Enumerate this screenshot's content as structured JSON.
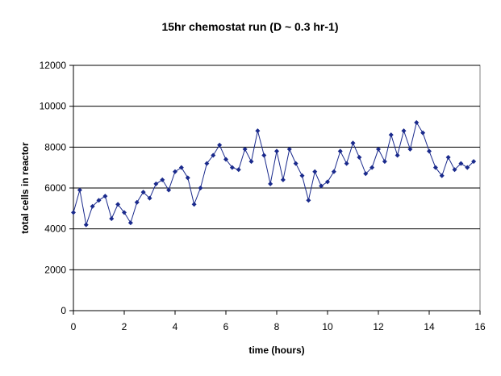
{
  "chart_data": {
    "type": "line",
    "title": "15hr chemostat run (D ~ 0.3 hr-1)",
    "xlabel": "time (hours)",
    "ylabel": "total cells in reactor",
    "xlim": [
      0,
      16
    ],
    "ylim": [
      0,
      12000
    ],
    "x_ticks": [
      "0",
      "2",
      "4",
      "6",
      "8",
      "10",
      "12",
      "14",
      "16"
    ],
    "y_ticks": [
      "0",
      "2000",
      "4000",
      "6000",
      "8000",
      "10000",
      "12000"
    ],
    "grid": "horizontal major lines",
    "legend": "none",
    "marker": "diamond",
    "colors": {
      "series": "#1a2a8c",
      "gridline": "#000000",
      "plot_border": "#808080"
    },
    "series": [
      {
        "x": [
          0.0,
          0.25,
          0.5,
          0.75,
          1.0,
          1.25,
          1.5,
          1.75,
          2.0,
          2.25,
          2.5,
          2.75,
          3.0,
          3.25,
          3.5,
          3.75,
          4.0,
          4.25,
          4.5,
          4.75,
          5.0,
          5.25,
          5.5,
          5.75,
          6.0,
          6.25,
          6.5,
          6.75,
          7.0,
          7.25,
          7.5,
          7.75,
          8.0,
          8.25,
          8.5,
          8.75,
          9.0,
          9.25,
          9.5,
          9.75,
          10.0,
          10.25,
          10.5,
          10.75,
          11.0,
          11.25,
          11.5,
          11.75,
          12.0,
          12.25,
          12.5,
          12.75,
          13.0,
          13.25,
          13.5,
          13.75,
          14.0,
          14.25,
          14.5,
          14.75,
          15.0,
          15.25,
          15.5,
          15.75
        ],
        "y": [
          4800,
          5900,
          4200,
          5100,
          5400,
          5600,
          4500,
          5200,
          4800,
          4300,
          5300,
          5800,
          5500,
          6200,
          6400,
          5900,
          6800,
          7000,
          6500,
          5200,
          6000,
          7200,
          7600,
          8100,
          7400,
          7000,
          6900,
          7900,
          7300,
          8800,
          7600,
          6200,
          7800,
          6400,
          7900,
          7200,
          6600,
          5400,
          6800,
          6100,
          6300,
          6800,
          7800,
          7200,
          8200,
          7500,
          6700,
          7000,
          7900,
          7300,
          8600,
          7600,
          8800,
          7900,
          9200,
          8700,
          7800,
          7000,
          6600,
          7500,
          6900,
          7200,
          7000,
          7300
        ]
      }
    ]
  }
}
